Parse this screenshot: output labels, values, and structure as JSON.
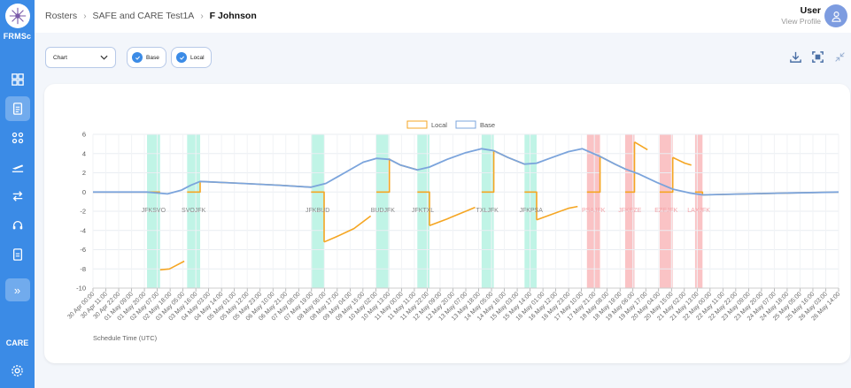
{
  "app": {
    "brand": "FRMSc",
    "section_label": "CARE"
  },
  "breadcrumb": {
    "items": [
      "Rosters",
      "SAFE and CARE Test1A"
    ],
    "current": "F Johnson"
  },
  "user": {
    "name": "User",
    "link": "View Profile"
  },
  "toolbar": {
    "chart_select": "Chart",
    "base_label": "Base",
    "local_label": "Local"
  },
  "colors": {
    "sidebar": "#3b8be6",
    "local": "#f5a623",
    "base": "#7ba4dc",
    "green_band": "#b5f2e2",
    "red_band": "#f9b8bb"
  },
  "chart_data": {
    "type": "line",
    "xlabel": "Schedule Time (UTC)",
    "ylim": [
      -10,
      6
    ],
    "yticks": [
      6,
      4,
      2,
      0,
      -2,
      -4,
      -6,
      -8,
      -10
    ],
    "legend": {
      "position": "top-center",
      "entries": [
        "Local",
        "Base"
      ]
    },
    "grid": true,
    "x_ticks": [
      "30 Apr 00:00",
      "30 Apr 11:00",
      "30 Apr 22:00",
      "01 May 09:00",
      "01 May 20:00",
      "02 May 07:00",
      "02 May 18:00",
      "03 May 05:00",
      "03 May 16:00",
      "04 May 03:00",
      "04 May 14:00",
      "05 May 01:00",
      "05 May 12:00",
      "05 May 23:00",
      "06 May 10:00",
      "06 May 21:00",
      "07 May 08:00",
      "07 May 19:00",
      "08 May 06:00",
      "08 May 17:00",
      "09 May 04:00",
      "09 May 15:00",
      "10 May 02:00",
      "10 May 13:00",
      "11 May 00:00",
      "11 May 11:00",
      "11 May 22:00",
      "12 May 09:00",
      "12 May 20:00",
      "13 May 07:00",
      "13 May 18:00",
      "14 May 05:00",
      "14 May 16:00",
      "15 May 03:00",
      "15 May 14:00",
      "16 May 01:00",
      "16 May 12:00",
      "16 May 23:00",
      "17 May 10:00",
      "17 May 21:00",
      "18 May 08:00",
      "18 May 19:00",
      "19 May 06:00",
      "19 May 17:00",
      "20 May 04:00",
      "20 May 15:00",
      "21 May 02:00",
      "21 May 13:00",
      "22 May 00:00",
      "22 May 11:00",
      "22 May 22:00",
      "23 May 09:00",
      "23 May 20:00",
      "24 May 07:00",
      "24 May 18:00",
      "25 May 05:00",
      "25 May 16:00",
      "26 May 03:00",
      "26 May 14:00"
    ],
    "bands": [
      {
        "type": "green",
        "from": 5.8,
        "to": 7.2
      },
      {
        "type": "green",
        "from": 10.1,
        "to": 11.5
      },
      {
        "type": "green",
        "from": 23.4,
        "to": 24.8
      },
      {
        "type": "green",
        "from": 30.4,
        "to": 31.8
      },
      {
        "type": "green",
        "from": 34.8,
        "to": 36.1
      },
      {
        "type": "green",
        "from": 41.7,
        "to": 43.0
      },
      {
        "type": "green",
        "from": 46.3,
        "to": 47.6
      },
      {
        "type": "red",
        "from": 53.0,
        "to": 54.4
      },
      {
        "type": "red",
        "from": 57.1,
        "to": 58.1
      },
      {
        "type": "red",
        "from": 60.8,
        "to": 62.2
      },
      {
        "type": "red",
        "from": 64.6,
        "to": 65.4
      }
    ],
    "flight_labels": [
      {
        "text": "JFKSVO",
        "x": 6.5,
        "color": "#888"
      },
      {
        "text": "SVOJFK",
        "x": 10.8,
        "color": "#888"
      },
      {
        "text": "JFKBUD",
        "x": 24.1,
        "color": "#888"
      },
      {
        "text": "BUDJFK",
        "x": 31.1,
        "color": "#888"
      },
      {
        "text": "JFKTXL",
        "x": 35.4,
        "color": "#888"
      },
      {
        "text": "TXLJFK",
        "x": 42.3,
        "color": "#888"
      },
      {
        "text": "JFKPSA",
        "x": 47.0,
        "color": "#888"
      },
      {
        "text": "PSAJFK",
        "x": 53.7,
        "color": "#f4a3a8"
      },
      {
        "text": "JFKEZE",
        "x": 57.6,
        "color": "#f4a3a8"
      },
      {
        "text": "EZEJFK",
        "x": 61.5,
        "color": "#f4a3a8"
      },
      {
        "text": "LAXJFK",
        "x": 65.0,
        "color": "#f4a3a8"
      }
    ],
    "series": [
      {
        "name": "Local",
        "color": "#f5a623",
        "segments": [
          [
            [
              0,
              0
            ],
            [
              5.8,
              0
            ],
            [
              7.2,
              0
            ]
          ],
          [
            [
              7.2,
              -8.1
            ],
            [
              8.2,
              -8.0
            ],
            [
              9.0,
              -7.6
            ],
            [
              9.8,
              -7.2
            ]
          ],
          [
            [
              10.1,
              0
            ],
            [
              11.5,
              0
            ],
            [
              11.5,
              1.0
            ]
          ],
          [
            [
              11.5,
              1.1
            ],
            [
              16,
              0.9
            ],
            [
              20,
              0.7
            ],
            [
              23.4,
              0.5
            ]
          ],
          [
            [
              23.4,
              0
            ],
            [
              24.8,
              0
            ],
            [
              24.8,
              -5.2
            ]
          ],
          [
            [
              24.8,
              -5.2
            ],
            [
              26,
              -4.7
            ],
            [
              28,
              -3.8
            ],
            [
              29.8,
              -2.5
            ]
          ],
          [
            [
              30.4,
              0
            ],
            [
              31.8,
              0
            ],
            [
              31.8,
              3.5
            ]
          ],
          [
            [
              31.8,
              3.4
            ],
            [
              33,
              2.8
            ],
            [
              34.8,
              2.3
            ]
          ],
          [
            [
              34.8,
              0
            ],
            [
              36.1,
              0
            ],
            [
              36.1,
              -3.5
            ]
          ],
          [
            [
              36.1,
              -3.5
            ],
            [
              38,
              -2.8
            ],
            [
              40,
              -2.0
            ],
            [
              41.0,
              -1.6
            ]
          ],
          [
            [
              41.7,
              0
            ],
            [
              43.0,
              0
            ],
            [
              43.0,
              4.3
            ]
          ],
          [
            [
              43.0,
              4.3
            ],
            [
              44.5,
              3.6
            ],
            [
              46.3,
              2.9
            ]
          ],
          [
            [
              46.3,
              0
            ],
            [
              47.6,
              0
            ],
            [
              47.6,
              -2.9
            ]
          ],
          [
            [
              47.6,
              -2.9
            ],
            [
              49,
              -2.4
            ],
            [
              51,
              -1.7
            ],
            [
              52.0,
              -1.5
            ]
          ],
          [
            [
              53.0,
              0
            ],
            [
              54.4,
              0
            ],
            [
              54.4,
              3.7
            ]
          ],
          [
            [
              54.4,
              3.7
            ],
            [
              56,
              2.9
            ],
            [
              57.1,
              2.4
            ]
          ],
          [
            [
              57.1,
              0
            ],
            [
              58.1,
              0
            ],
            [
              58.1,
              5.2
            ]
          ],
          [
            [
              58.1,
              5.2
            ],
            [
              59.5,
              4.4
            ]
          ],
          [
            [
              60.8,
              0
            ],
            [
              62.2,
              0
            ],
            [
              62.2,
              3.6
            ]
          ],
          [
            [
              62.2,
              3.6
            ],
            [
              63.5,
              3.0
            ],
            [
              64.2,
              2.8
            ]
          ],
          [
            [
              64.6,
              0
            ],
            [
              65.4,
              0
            ],
            [
              65.4,
              -0.3
            ]
          ],
          [
            [
              65.4,
              -0.3
            ],
            [
              70,
              -0.2
            ],
            [
              75,
              -0.1
            ],
            [
              80,
              0
            ]
          ]
        ]
      },
      {
        "name": "Base",
        "color": "#7ba4dc",
        "segments": [
          [
            [
              0,
              0
            ],
            [
              5.8,
              0
            ],
            [
              8,
              -0.2
            ],
            [
              9.5,
              0.2
            ],
            [
              10.5,
              0.7
            ],
            [
              11.5,
              1.1
            ],
            [
              16,
              0.9
            ],
            [
              20,
              0.7
            ],
            [
              23.4,
              0.5
            ],
            [
              25,
              0.9
            ],
            [
              27,
              2.0
            ],
            [
              29,
              3.1
            ],
            [
              30.4,
              3.5
            ],
            [
              31.8,
              3.4
            ],
            [
              33,
              2.8
            ],
            [
              34.8,
              2.3
            ],
            [
              36.1,
              2.6
            ],
            [
              38,
              3.4
            ],
            [
              40,
              4.1
            ],
            [
              41.7,
              4.5
            ],
            [
              43.0,
              4.3
            ],
            [
              44.5,
              3.6
            ],
            [
              46.3,
              2.9
            ],
            [
              47.6,
              3.0
            ],
            [
              49,
              3.5
            ],
            [
              51,
              4.2
            ],
            [
              52.5,
              4.5
            ],
            [
              54.4,
              3.7
            ],
            [
              56,
              2.9
            ],
            [
              57.1,
              2.4
            ],
            [
              58.5,
              1.9
            ],
            [
              60.5,
              1.0
            ],
            [
              62.2,
              0.3
            ],
            [
              64,
              -0.1
            ],
            [
              65.4,
              -0.3
            ],
            [
              70,
              -0.2
            ],
            [
              75,
              -0.1
            ],
            [
              80,
              0
            ]
          ]
        ]
      }
    ]
  }
}
